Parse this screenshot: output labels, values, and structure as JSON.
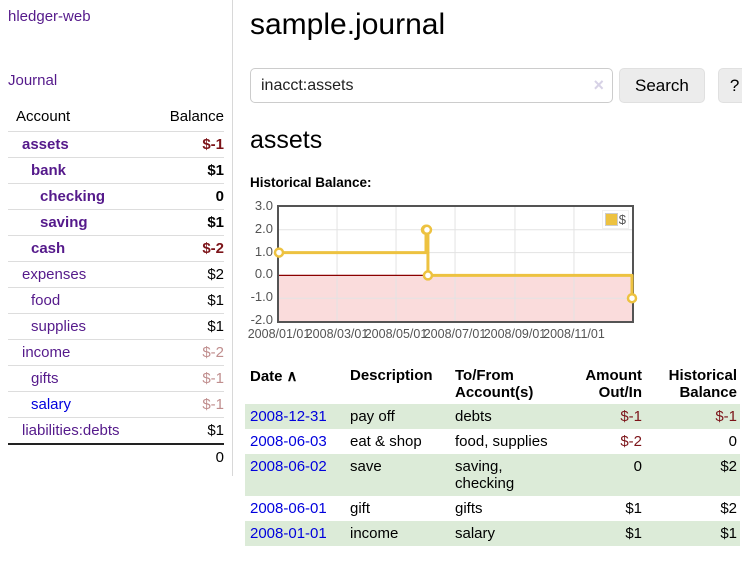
{
  "sidebar": {
    "brand": "hledger-web",
    "journal_link": "Journal",
    "accounts_table": {
      "account_header": "Account",
      "balance_header": "Balance",
      "rows": [
        {
          "name": "assets",
          "balance": "$-1",
          "level": 0,
          "bold": true,
          "neg": "strong"
        },
        {
          "name": "bank",
          "balance": "$1",
          "level": 1,
          "bold": true,
          "neg": ""
        },
        {
          "name": "checking",
          "balance": "0",
          "level": 2,
          "bold": true,
          "neg": ""
        },
        {
          "name": "saving",
          "balance": "$1",
          "level": 2,
          "bold": true,
          "neg": ""
        },
        {
          "name": "cash",
          "balance": "$-2",
          "level": 1,
          "bold": true,
          "neg": "strong"
        },
        {
          "name": "expenses",
          "balance": "$2",
          "level": 0,
          "bold": false,
          "neg": ""
        },
        {
          "name": "food",
          "balance": "$1",
          "level": 1,
          "bold": false,
          "neg": ""
        },
        {
          "name": "supplies",
          "balance": "$1",
          "level": 1,
          "bold": false,
          "neg": ""
        },
        {
          "name": "income",
          "balance": "$-2",
          "level": 0,
          "bold": false,
          "neg": "soft"
        },
        {
          "name": "gifts",
          "balance": "$-1",
          "level": 1,
          "bold": false,
          "neg": "soft"
        },
        {
          "name": "salary",
          "balance": "$-1",
          "level": 1,
          "bold": false,
          "neg": "soft",
          "link_color": "blue"
        },
        {
          "name": "liabilities:debts",
          "balance": "$1",
          "level": 0,
          "bold": false,
          "neg": ""
        }
      ],
      "total": "0"
    }
  },
  "main": {
    "title": "sample.journal",
    "search": {
      "value": "inacct:assets",
      "clear_glyph": "×",
      "search_button": "Search",
      "help_button": "?"
    },
    "account_heading": "assets",
    "chart_title": "Historical Balance:",
    "register_table": {
      "headers": {
        "date": "Date",
        "sort_glyph": "∧",
        "description": "Description",
        "accounts": "To/From Account(s)",
        "amount": "Amount Out/In",
        "balance": "Historical Balance"
      },
      "rows": [
        {
          "date": "2008-12-31",
          "description": "pay off",
          "accounts": "debts",
          "amount": "$-1",
          "amount_neg": true,
          "balance": "$-1",
          "balance_neg": true,
          "stripe": true
        },
        {
          "date": "2008-06-03",
          "description": "eat & shop",
          "accounts": "food, supplies",
          "amount": "$-2",
          "amount_neg": true,
          "balance": "0",
          "balance_neg": false,
          "stripe": false
        },
        {
          "date": "2008-06-02",
          "description": "save",
          "accounts": "saving, checking",
          "amount": "0",
          "amount_neg": false,
          "balance": "$2",
          "balance_neg": false,
          "stripe": true
        },
        {
          "date": "2008-06-01",
          "description": "gift",
          "accounts": "gifts",
          "amount": "$1",
          "amount_neg": false,
          "balance": "$2",
          "balance_neg": false,
          "stripe": false
        },
        {
          "date": "2008-01-01",
          "description": "income",
          "accounts": "salary",
          "amount": "$1",
          "amount_neg": false,
          "balance": "$1",
          "balance_neg": false,
          "stripe": true
        }
      ]
    }
  },
  "chart_data": {
    "type": "line",
    "step": true,
    "title": "Historical Balance:",
    "x_range": [
      "2008-01-01",
      "2008-12-31"
    ],
    "ylim": [
      -2,
      3
    ],
    "yticks": [
      3.0,
      2.0,
      1.0,
      0.0,
      -1.0,
      -2.0
    ],
    "ytick_labels": [
      "3.0",
      "2.0",
      "1.0",
      "0.0",
      "-1.0",
      "-2.0"
    ],
    "xticks": [
      "2008-01-01",
      "2008-03-01",
      "2008-05-01",
      "2008-07-01",
      "2008-09-01",
      "2008-11-01"
    ],
    "xtick_labels": [
      "2008/01/01",
      "2008/03/01",
      "2008/05/01",
      "2008/07/01",
      "2008/09/01",
      "2008/11/01"
    ],
    "series": [
      {
        "name": "$",
        "color": "#edc240",
        "points": [
          {
            "x": "2008-01-01",
            "y": 1
          },
          {
            "x": "2008-06-01",
            "y": 2
          },
          {
            "x": "2008-06-02",
            "y": 2
          },
          {
            "x": "2008-06-03",
            "y": 0
          },
          {
            "x": "2008-12-31",
            "y": -1
          }
        ]
      }
    ],
    "zero_line_color": "#8b0000",
    "negative_region_fill": "#fadcdc",
    "grid_color": "#e3e3e3",
    "legend": {
      "label": "$",
      "position": "top-right"
    }
  }
}
